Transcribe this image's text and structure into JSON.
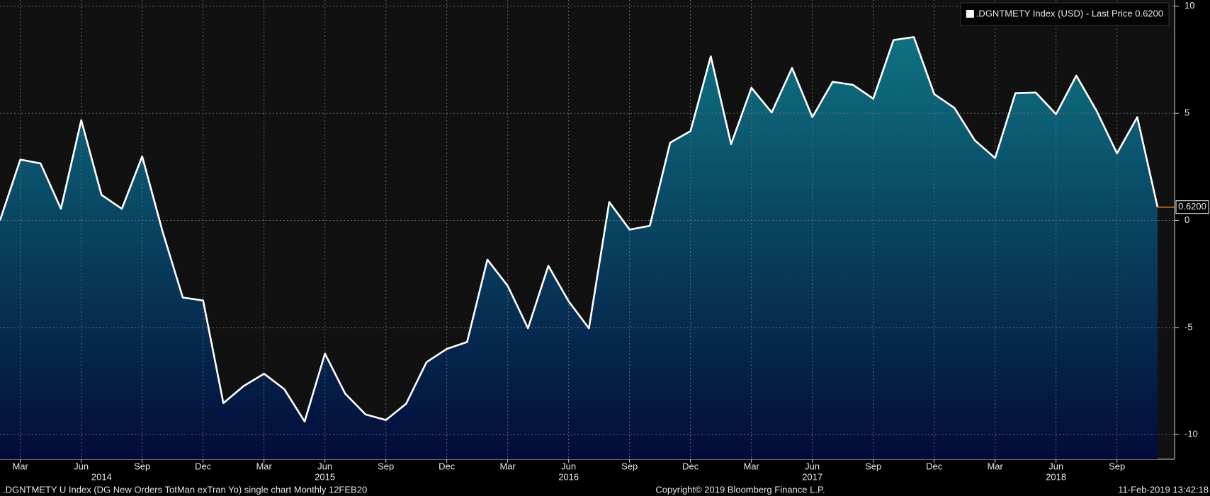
{
  "chart_data": {
    "type": "area",
    "categories": [
      null,
      "Mar",
      null,
      null,
      "Jun",
      null,
      null,
      "Sep",
      null,
      null,
      "Dec",
      null,
      null,
      "Mar",
      null,
      null,
      "Jun",
      null,
      null,
      "Sep",
      null,
      null,
      "Dec",
      null,
      null,
      "Mar",
      null,
      null,
      "Jun",
      null,
      null,
      "Sep",
      null,
      null,
      "Dec",
      null,
      null,
      "Mar",
      null,
      null,
      "Jun",
      null,
      null,
      "Sep",
      null,
      null,
      "Dec",
      null,
      null,
      "Mar",
      null,
      null,
      "Jun",
      null,
      null,
      "Sep",
      null,
      null
    ],
    "year_row": [
      null,
      null,
      null,
      null,
      null,
      "2014",
      null,
      null,
      null,
      null,
      null,
      null,
      null,
      null,
      null,
      null,
      "2015",
      null,
      null,
      null,
      null,
      null,
      null,
      null,
      null,
      null,
      null,
      null,
      "2016",
      null,
      null,
      null,
      null,
      null,
      null,
      null,
      null,
      null,
      null,
      null,
      "2017",
      null,
      null,
      null,
      null,
      null,
      null,
      null,
      null,
      null,
      null,
      null,
      "2018",
      null,
      null,
      null,
      null,
      null
    ],
    "series": [
      {
        "name": ".DGNTMETY Index (USD) - Last Price 0.6200",
        "color": "#ffffff",
        "values": [
          0.0,
          2.84,
          2.66,
          0.54,
          4.68,
          1.19,
          0.54,
          2.99,
          -0.5,
          -3.6,
          -3.74,
          -8.53,
          -7.73,
          -7.16,
          -7.88,
          -9.39,
          -6.22,
          -8.09,
          -9.06,
          -9.32,
          -8.56,
          -6.62,
          -6.0,
          -5.68,
          -1.83,
          -3.06,
          -5.04,
          -2.12,
          -3.78,
          -5.04,
          0.86,
          -0.43,
          -0.25,
          3.63,
          4.17,
          7.66,
          3.56,
          6.19,
          5.04,
          7.12,
          4.82,
          6.47,
          6.33,
          5.68,
          8.42,
          8.56,
          5.9,
          5.25,
          3.74,
          2.91,
          5.94,
          5.97,
          4.96,
          6.76,
          5.11,
          3.13,
          4.82,
          0.62
        ],
        "value_labels": [
          null,
          null,
          null,
          null,
          null,
          null,
          null,
          null,
          null,
          null,
          null,
          null,
          null,
          null,
          null,
          null,
          null,
          null,
          null,
          null,
          null,
          null,
          null,
          null,
          null,
          null,
          null,
          null,
          null,
          null,
          null,
          null,
          null,
          null,
          null,
          null,
          null,
          null,
          null,
          null,
          null,
          null,
          null,
          null,
          null,
          null,
          null,
          null,
          null,
          null,
          null,
          null,
          null,
          null,
          null,
          null,
          null,
          "0.6200"
        ]
      }
    ],
    "ylim": [
      -11.15,
      10.29
    ],
    "yticks": [
      -10,
      -5,
      0,
      5,
      10
    ],
    "grid": true,
    "legend": "top-right",
    "fill_top": "#0e7282",
    "fill_bottom": "#020b3a",
    "last_price_color": "#f07a10",
    "footer_left": ".DGNTMETY U Index (DG New Orders TotMan exTran Yo) single chart  Monthly 12FEB20",
    "footer_center": "Copyright© 2019 Bloomberg Finance L.P.",
    "footer_right": "11-Feb-2019 13:42:18"
  }
}
